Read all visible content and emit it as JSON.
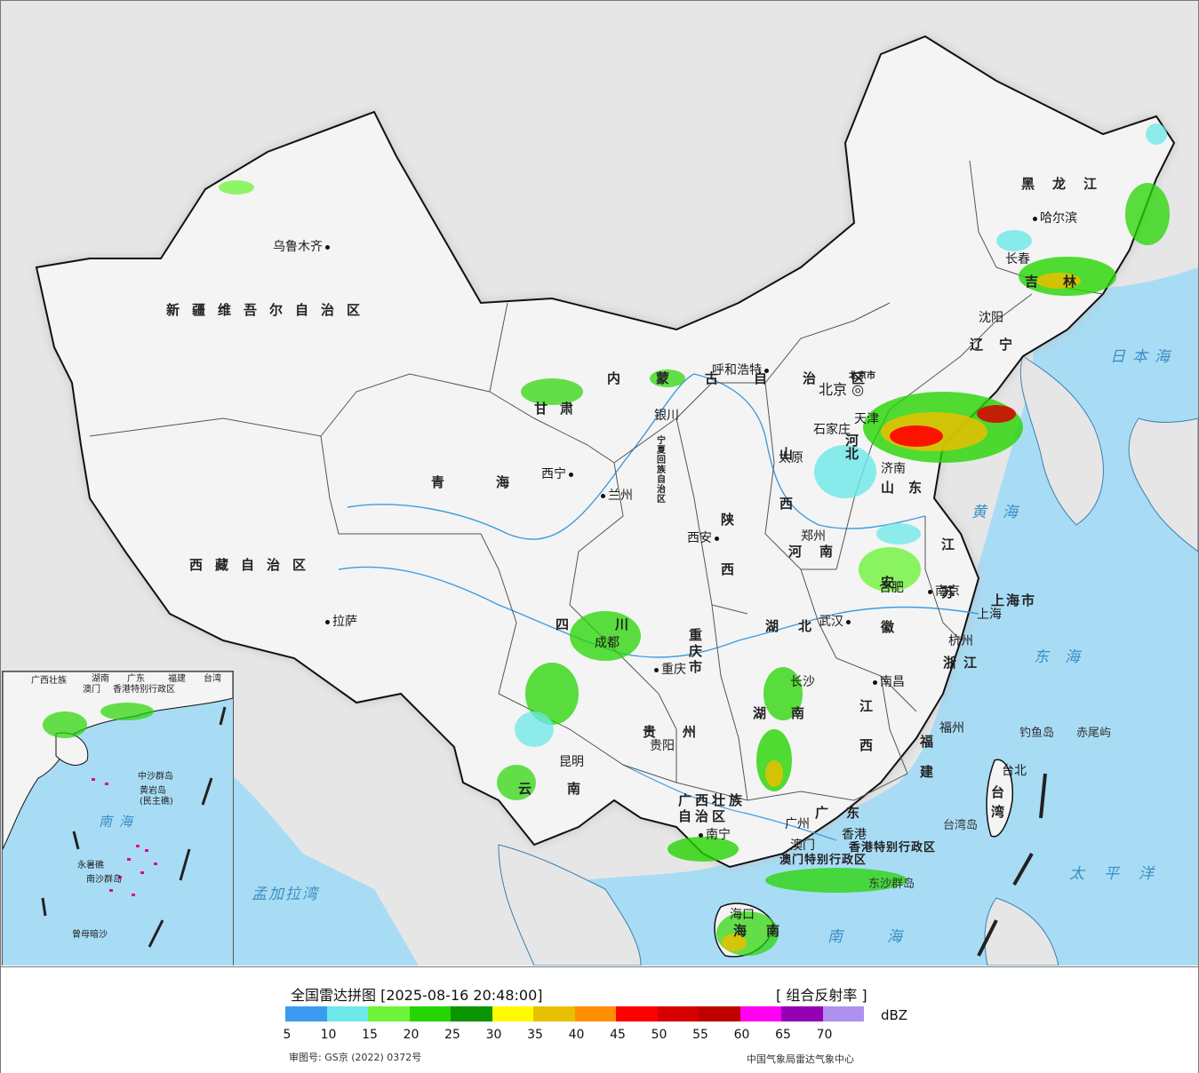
{
  "legend": {
    "title": "全国雷达拼图 [2025-08-16 20:48:00]",
    "product": "[ 组合反射率 ]",
    "unit": "dBZ",
    "colors": [
      "#3c9bf0",
      "#6ce8ea",
      "#6ef43a",
      "#25d400",
      "#0b9500",
      "#fffa00",
      "#e7c000",
      "#ff8f00",
      "#ff0000",
      "#d60000",
      "#c00000",
      "#ff00f0",
      "#9600b4",
      "#ad90f0"
    ],
    "ticks": [
      "5",
      "10",
      "15",
      "20",
      "25",
      "30",
      "35",
      "40",
      "45",
      "50",
      "55",
      "60",
      "65",
      "70"
    ],
    "approval": "审图号: GS京 (2022) 0372号",
    "org": "中国气象局雷达气象中心"
  },
  "cities": [
    {
      "name": "乌鲁木齐",
      "dot": "after"
    },
    {
      "name": "哈尔滨",
      "dot": "before"
    },
    {
      "name": "长春",
      "dot": "none"
    },
    {
      "name": "沈阳",
      "dot": "none"
    },
    {
      "name": "呼和浩特",
      "dot": "after"
    },
    {
      "name": "北京",
      "dot": "none"
    },
    {
      "name": "天津",
      "dot": "none"
    },
    {
      "name": "石家庄",
      "dot": "none"
    },
    {
      "name": "银川",
      "dot": "none"
    },
    {
      "name": "太原",
      "dot": "none"
    },
    {
      "name": "西宁",
      "dot": "after"
    },
    {
      "name": "兰州",
      "dot": "before"
    },
    {
      "name": "济南",
      "dot": "none"
    },
    {
      "name": "郑州",
      "dot": "none"
    },
    {
      "name": "西安",
      "dot": "after"
    },
    {
      "name": "合肥",
      "dot": "none"
    },
    {
      "name": "南京",
      "dot": "before"
    },
    {
      "name": "上海",
      "dot": "none"
    },
    {
      "name": "拉萨",
      "dot": "before"
    },
    {
      "name": "成都",
      "dot": "none"
    },
    {
      "name": "武汉",
      "dot": "after"
    },
    {
      "name": "杭州",
      "dot": "none"
    },
    {
      "name": "重庆",
      "dot": "before"
    },
    {
      "name": "长沙",
      "dot": "none"
    },
    {
      "name": "南昌",
      "dot": "before"
    },
    {
      "name": "贵阳",
      "dot": "none"
    },
    {
      "name": "福州",
      "dot": "none"
    },
    {
      "name": "台北",
      "dot": "none"
    },
    {
      "name": "昆明",
      "dot": "none"
    },
    {
      "name": "南宁",
      "dot": "before"
    },
    {
      "name": "广州",
      "dot": "none"
    },
    {
      "name": "澳门",
      "dot": "none"
    },
    {
      "name": "香港",
      "dot": "none"
    },
    {
      "name": "海口",
      "dot": "none"
    }
  ],
  "provinces": [
    {
      "name": "新疆维吾尔自治区"
    },
    {
      "name": "西藏自治区"
    },
    {
      "name": "青海"
    },
    {
      "name": "甘肃"
    },
    {
      "name": "内蒙古自治区"
    },
    {
      "name": "黑龙江"
    },
    {
      "name": "吉林"
    },
    {
      "name": "辽宁"
    },
    {
      "name": "河北"
    },
    {
      "name": "山西"
    },
    {
      "name": "陕西"
    },
    {
      "name": "河南"
    },
    {
      "name": "山东"
    },
    {
      "name": "江苏"
    },
    {
      "name": "安徽"
    },
    {
      "name": "湖北"
    },
    {
      "name": "四川"
    },
    {
      "name": "重庆市"
    },
    {
      "name": "湖南"
    },
    {
      "name": "江西"
    },
    {
      "name": "浙江"
    },
    {
      "name": "福建"
    },
    {
      "name": "贵州"
    },
    {
      "name": "云南"
    },
    {
      "name": "广西壮族"
    },
    {
      "name": "自治区"
    },
    {
      "name": "广东"
    },
    {
      "name": "台湾"
    },
    {
      "name": "海南"
    },
    {
      "name": "上海市"
    },
    {
      "name": "宁夏回族自治区"
    },
    {
      "name": "香港特别行政区"
    },
    {
      "name": "澳门特别行政区"
    },
    {
      "name": "北京市"
    }
  ],
  "seas": [
    "日本海",
    "黄海",
    "东海",
    "太平洋",
    "南海",
    "孟加拉湾"
  ],
  "islands": [
    "钓鱼岛",
    "赤尾屿",
    "台湾岛",
    "东沙群岛"
  ],
  "inset": {
    "sea": "南海",
    "labels": [
      "广西壮族",
      "广东",
      "湖南",
      "福建",
      "台湾",
      "澳门",
      "香港特别行政区",
      "中沙群岛",
      "黄岩岛",
      "(民主礁)",
      "永暑礁",
      "南沙群岛",
      "曾母暗沙"
    ]
  }
}
